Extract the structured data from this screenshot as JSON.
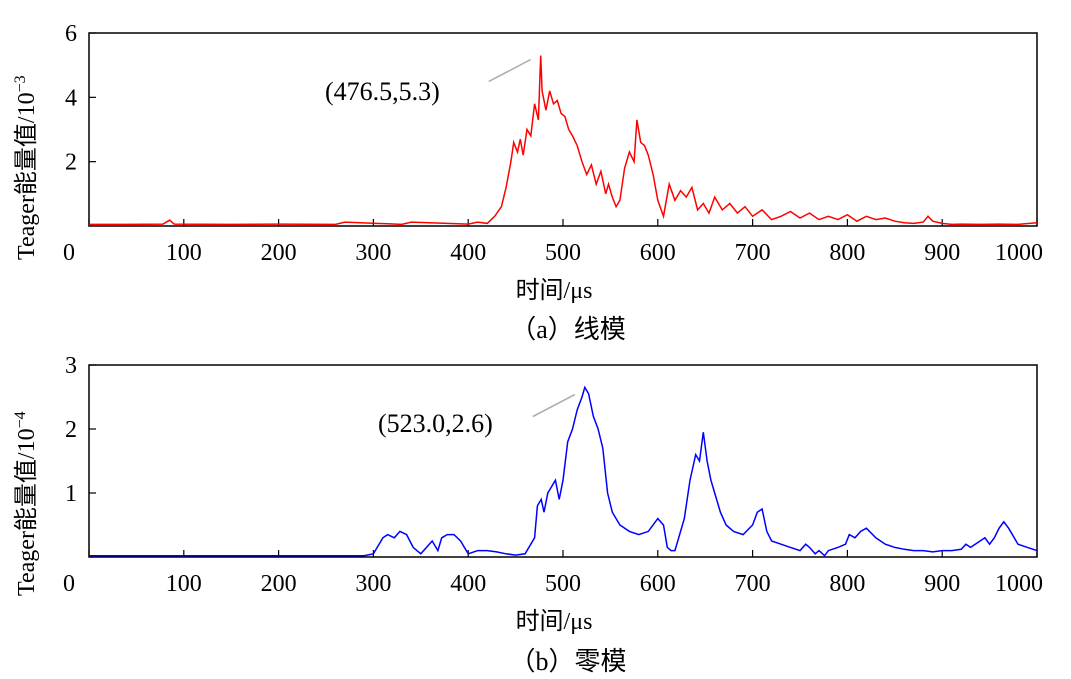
{
  "chart_data": [
    {
      "type": "line",
      "ylabel": "Teager能量值/10",
      "ylabel_exponent": "−3",
      "xlabel": "时间/μs",
      "caption": "（a）线模",
      "xlim": [
        0,
        1000
      ],
      "ylim": [
        0,
        6
      ],
      "x_ticks": [
        0,
        100,
        200,
        300,
        400,
        500,
        600,
        700,
        800,
        900,
        1000
      ],
      "y_ticks": [
        2,
        4,
        6
      ],
      "x_tick_labels": [
        "0",
        "100",
        "200",
        "300",
        "400",
        "500",
        "600",
        "700",
        "800",
        "900",
        "1000"
      ],
      "y_tick_labels": [
        "2",
        "4",
        "6"
      ],
      "line_color": "#ff0000",
      "annotation": {
        "text": "(476.5,5.3)",
        "x": 476.5,
        "y": 5.3
      },
      "series": [
        {
          "x": [
            0,
            40,
            78,
            85,
            90,
            150,
            200,
            260,
            270,
            330,
            340,
            400,
            410,
            420,
            428,
            435,
            440,
            445,
            448,
            452,
            455,
            458,
            462,
            466,
            470,
            474,
            476.5,
            478,
            482,
            486,
            490,
            494,
            498,
            502,
            506,
            510,
            515,
            520,
            525,
            530,
            535,
            540,
            545,
            548,
            552,
            556,
            560,
            565,
            570,
            575,
            578,
            582,
            586,
            590,
            595,
            600,
            606,
            612,
            618,
            624,
            630,
            636,
            642,
            648,
            654,
            660,
            668,
            676,
            684,
            692,
            700,
            710,
            720,
            730,
            740,
            750,
            760,
            770,
            780,
            790,
            800,
            810,
            820,
            830,
            840,
            850,
            860,
            870,
            880,
            885,
            890,
            900,
            910,
            920,
            940,
            960,
            980,
            1000
          ],
          "values": [
            0.05,
            0.05,
            0.06,
            0.18,
            0.06,
            0.05,
            0.06,
            0.05,
            0.12,
            0.05,
            0.12,
            0.06,
            0.12,
            0.08,
            0.3,
            0.6,
            1.2,
            2.0,
            2.6,
            2.3,
            2.7,
            2.2,
            3.0,
            2.8,
            3.8,
            3.3,
            5.3,
            4.2,
            3.6,
            4.2,
            3.8,
            3.9,
            3.5,
            3.4,
            3.0,
            2.8,
            2.5,
            2.0,
            1.6,
            1.9,
            1.3,
            1.7,
            1.0,
            1.3,
            0.9,
            0.6,
            0.8,
            1.8,
            2.3,
            2.0,
            3.3,
            2.6,
            2.5,
            2.2,
            1.6,
            0.8,
            0.3,
            1.3,
            0.8,
            1.1,
            0.9,
            1.2,
            0.5,
            0.7,
            0.4,
            0.9,
            0.5,
            0.7,
            0.4,
            0.6,
            0.3,
            0.5,
            0.2,
            0.3,
            0.45,
            0.25,
            0.4,
            0.2,
            0.3,
            0.2,
            0.35,
            0.15,
            0.3,
            0.2,
            0.25,
            0.15,
            0.1,
            0.08,
            0.12,
            0.3,
            0.15,
            0.08,
            0.05,
            0.06,
            0.05,
            0.06,
            0.05,
            0.1
          ]
        }
      ]
    },
    {
      "type": "line",
      "ylabel": "Teager能量值/10",
      "ylabel_exponent": "−4",
      "xlabel": "时间/μs",
      "caption": "（b）零模",
      "xlim": [
        0,
        1000
      ],
      "ylim": [
        0,
        3
      ],
      "x_ticks": [
        0,
        100,
        200,
        300,
        400,
        500,
        600,
        700,
        800,
        900,
        1000
      ],
      "y_ticks": [
        1,
        2,
        3
      ],
      "x_tick_labels": [
        "0",
        "100",
        "200",
        "300",
        "400",
        "500",
        "600",
        "700",
        "800",
        "900",
        "1000"
      ],
      "y_tick_labels": [
        "1",
        "2",
        "3"
      ],
      "line_color": "#0000ff",
      "annotation": {
        "text": "(523.0,2.6)",
        "x": 523.0,
        "y": 2.6
      },
      "series": [
        {
          "x": [
            0,
            100,
            200,
            290,
            300,
            310,
            315,
            322,
            328,
            335,
            342,
            350,
            362,
            368,
            372,
            378,
            385,
            392,
            400,
            410,
            420,
            430,
            440,
            450,
            460,
            470,
            473,
            477,
            480,
            484,
            488,
            492,
            496,
            500,
            505,
            510,
            515,
            520,
            523,
            527,
            532,
            537,
            542,
            547,
            552,
            560,
            570,
            580,
            590,
            600,
            606,
            610,
            614,
            618,
            622,
            628,
            634,
            640,
            644,
            648,
            652,
            656,
            660,
            666,
            672,
            680,
            690,
            700,
            705,
            710,
            715,
            720,
            730,
            740,
            750,
            756,
            760,
            766,
            770,
            776,
            780,
            790,
            798,
            802,
            808,
            814,
            820,
            830,
            840,
            850,
            860,
            870,
            880,
            890,
            900,
            910,
            920,
            925,
            930,
            940,
            945,
            950,
            955,
            960,
            965,
            970,
            980,
            990,
            1000
          ],
          "values": [
            0.02,
            0.02,
            0.02,
            0.02,
            0.05,
            0.3,
            0.35,
            0.3,
            0.4,
            0.35,
            0.15,
            0.05,
            0.25,
            0.1,
            0.3,
            0.35,
            0.35,
            0.25,
            0.05,
            0.1,
            0.1,
            0.08,
            0.05,
            0.03,
            0.05,
            0.3,
            0.8,
            0.9,
            0.7,
            1.0,
            1.1,
            1.2,
            0.9,
            1.2,
            1.8,
            2.0,
            2.3,
            2.5,
            2.65,
            2.55,
            2.2,
            2.0,
            1.7,
            1.0,
            0.7,
            0.5,
            0.4,
            0.35,
            0.4,
            0.6,
            0.5,
            0.15,
            0.1,
            0.1,
            0.3,
            0.6,
            1.2,
            1.6,
            1.5,
            1.95,
            1.5,
            1.2,
            1.0,
            0.7,
            0.5,
            0.4,
            0.35,
            0.5,
            0.7,
            0.75,
            0.4,
            0.25,
            0.2,
            0.15,
            0.1,
            0.2,
            0.15,
            0.05,
            0.1,
            0.02,
            0.1,
            0.15,
            0.2,
            0.35,
            0.3,
            0.4,
            0.45,
            0.3,
            0.2,
            0.15,
            0.12,
            0.1,
            0.1,
            0.08,
            0.1,
            0.1,
            0.12,
            0.2,
            0.15,
            0.25,
            0.3,
            0.2,
            0.3,
            0.45,
            0.55,
            0.45,
            0.2,
            0.15,
            0.1
          ]
        }
      ]
    }
  ]
}
